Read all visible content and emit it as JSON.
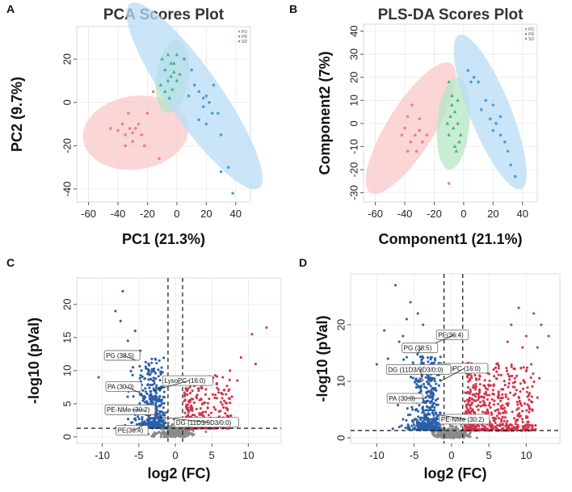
{
  "figure": {
    "panel_labels": [
      "A",
      "B",
      "C",
      "D"
    ]
  },
  "colors": {
    "PD": "#f08080",
    "PR": "#3cb878",
    "SD": "#4a9fd8",
    "PD_fill": "#f9c8c8",
    "PR_fill": "#b5e6c5",
    "SD_fill": "#b8dcf5",
    "volcano_down": "#2a5fa8",
    "volcano_up": "#d2334a",
    "volcano_ns": "#8a8a8a"
  },
  "chart_data": [
    {
      "id": "A",
      "type": "scatter",
      "title": "PCA Scores Plot",
      "xlabel": "PC1 (21.3%)",
      "ylabel": "PC2 (9.7%)",
      "xlim": [
        -68,
        50
      ],
      "ylim": [
        -46,
        35
      ],
      "xticks": [
        -60,
        -40,
        -20,
        0,
        20,
        40
      ],
      "yticks": [
        -40,
        -20,
        0,
        20
      ],
      "legend": [
        "PD",
        "PR",
        "SD"
      ],
      "legend_position": "top-right",
      "ellipses": [
        {
          "group": "PD",
          "cx": -28,
          "cy": -14,
          "rx": 36,
          "ry": 17,
          "angle": 8
        },
        {
          "group": "PR",
          "cx": -3,
          "cy": 12,
          "rx": 11,
          "ry": 17,
          "angle": -8
        },
        {
          "group": "SD",
          "cx": 12,
          "cy": 3,
          "rx": 18,
          "ry": 52,
          "angle": 35
        }
      ],
      "series": [
        {
          "name": "PD",
          "points": [
            [
              -40,
              -13
            ],
            [
              -37,
              -10
            ],
            [
              -35,
              -15
            ],
            [
              -33,
              -5
            ],
            [
              -32,
              -12
            ],
            [
              -30,
              -18
            ],
            [
              -28,
              -12
            ],
            [
              -26,
              -10
            ],
            [
              -24,
              -15
            ],
            [
              -20,
              -5
            ],
            [
              -45,
              -12
            ],
            [
              -22,
              -20
            ],
            [
              -35,
              -20
            ],
            [
              -30,
              -14
            ],
            [
              -12,
              -26
            ],
            [
              -16,
              5
            ]
          ]
        },
        {
          "name": "PR",
          "points": [
            [
              -10,
              20
            ],
            [
              -8,
              15
            ],
            [
              -6,
              22
            ],
            [
              -4,
              12
            ],
            [
              -2,
              18
            ],
            [
              0,
              10
            ],
            [
              -6,
              10
            ],
            [
              -8,
              5
            ],
            [
              -2,
              14
            ],
            [
              2,
              13
            ],
            [
              -4,
              18
            ],
            [
              -11,
              8
            ],
            [
              -5,
              2
            ],
            [
              0,
              22
            ],
            [
              -3,
              6
            ]
          ]
        },
        {
          "name": "SD",
          "points": [
            [
              5,
              20
            ],
            [
              10,
              15
            ],
            [
              12,
              8
            ],
            [
              15,
              5
            ],
            [
              18,
              -2
            ],
            [
              20,
              3
            ],
            [
              22,
              0
            ],
            [
              24,
              -5
            ],
            [
              20,
              -10
            ],
            [
              25,
              8
            ],
            [
              30,
              -15
            ],
            [
              28,
              -5
            ],
            [
              35,
              -30
            ],
            [
              38,
              -42
            ],
            [
              30,
              -32
            ],
            [
              15,
              -8
            ],
            [
              8,
              3
            ],
            [
              18,
              2
            ]
          ]
        }
      ]
    },
    {
      "id": "B",
      "type": "scatter",
      "title": "PLS-DA Scores Plot",
      "xlabel": "Component1 (21.1%)",
      "ylabel": "Component2 (7%)",
      "xlim": [
        -68,
        50
      ],
      "ylim": [
        -34,
        43
      ],
      "xticks": [
        -60,
        -40,
        -20,
        0,
        20,
        40
      ],
      "yticks": [
        -30,
        -20,
        -10,
        0,
        10,
        20,
        30,
        40
      ],
      "legend": [
        "PD",
        "PR",
        "SD"
      ],
      "legend_position": "top-right",
      "ellipses": [
        {
          "group": "PD",
          "cx": -36,
          "cy": -2,
          "rx": 16,
          "ry": 33,
          "angle": -32
        },
        {
          "group": "PR",
          "cx": -7,
          "cy": 0,
          "rx": 11,
          "ry": 20,
          "angle": -5
        },
        {
          "group": "SD",
          "cx": 18,
          "cy": 5,
          "rx": 14,
          "ry": 36,
          "angle": 22
        }
      ],
      "series": [
        {
          "name": "PD",
          "points": [
            [
              -35,
              8
            ],
            [
              -38,
              3
            ],
            [
              -30,
              2
            ],
            [
              -40,
              -2
            ],
            [
              -33,
              -5
            ],
            [
              -36,
              -8
            ],
            [
              -28,
              -8
            ],
            [
              -32,
              -12
            ],
            [
              -38,
              -12
            ],
            [
              -25,
              -5
            ],
            [
              -42,
              -5
            ],
            [
              -30,
              -3
            ],
            [
              -10,
              -26
            ]
          ]
        },
        {
          "name": "PR",
          "points": [
            [
              -10,
              18
            ],
            [
              -8,
              12
            ],
            [
              -4,
              10
            ],
            [
              -6,
              5
            ],
            [
              -9,
              3
            ],
            [
              -4,
              0
            ],
            [
              -7,
              -2
            ],
            [
              -10,
              -5
            ],
            [
              -3,
              -8
            ],
            [
              -6,
              -10
            ],
            [
              -2,
              -5
            ],
            [
              -8,
              8
            ],
            [
              -11,
              0
            ],
            [
              -5,
              -12
            ]
          ]
        },
        {
          "name": "SD",
          "points": [
            [
              3,
              23
            ],
            [
              7,
              20
            ],
            [
              10,
              18
            ],
            [
              15,
              10
            ],
            [
              20,
              8
            ],
            [
              18,
              2
            ],
            [
              22,
              0
            ],
            [
              20,
              -3
            ],
            [
              25,
              -5
            ],
            [
              28,
              -8
            ],
            [
              30,
              -12
            ],
            [
              32,
              -18
            ],
            [
              35,
              -23
            ],
            [
              12,
              6
            ],
            [
              25,
              3
            ],
            [
              5,
              18
            ]
          ]
        }
      ]
    },
    {
      "id": "C",
      "type": "scatter",
      "subtype": "volcano",
      "xlabel": "log2 (FC)",
      "ylabel": "-log10 (pVal)",
      "xlim": [
        -13.5,
        14.5
      ],
      "ylim": [
        -1,
        24
      ],
      "xticks": [
        -10,
        -5,
        0,
        5,
        10
      ],
      "yticks": [
        0,
        5,
        10,
        15,
        20
      ],
      "thresholds": {
        "fc": [
          -1,
          1
        ],
        "pval": 1.3
      },
      "annotations": [
        {
          "label": "PG (38:5)",
          "x": -5.5,
          "y": 11.6,
          "tx": -9.5,
          "ty": 12.3
        },
        {
          "label": "LysoPC (16:0)",
          "x": -3.0,
          "y": 7.0,
          "tx": -1.5,
          "ty": 8.5
        },
        {
          "label": "PA (30:0)",
          "x": -4.5,
          "y": 6.5,
          "tx": -9.3,
          "ty": 7.6
        },
        {
          "label": "PE-NMe (30:2)",
          "x": -4.0,
          "y": 4.0,
          "tx": -9.4,
          "ty": 4.1
        },
        {
          "label": "DG (11D3/9D3/0:0)",
          "x": -2.2,
          "y": 3.0,
          "tx": 0.1,
          "ty": 2.2
        },
        {
          "label": "PE(36:4)",
          "x": -4.3,
          "y": 1.8,
          "tx": -7.9,
          "ty": 1.0
        }
      ]
    },
    {
      "id": "D",
      "type": "scatter",
      "subtype": "volcano",
      "xlabel": "log2 (FC)",
      "ylabel": "-log10 (pVal)",
      "xlim": [
        -13.5,
        14.5
      ],
      "ylim": [
        -1,
        29
      ],
      "xticks": [
        -10,
        -5,
        0,
        5,
        10
      ],
      "yticks": [
        0,
        10,
        20
      ],
      "thresholds": {
        "fc": [
          -1,
          1.5
        ],
        "pval": 1.3
      },
      "annotations": [
        {
          "label": "PE(36:4)",
          "x": -3.5,
          "y": 16.0,
          "tx": -1.8,
          "ty": 18.2
        },
        {
          "label": "PG (38:5)",
          "x": -4.5,
          "y": 15.0,
          "tx": -6.4,
          "ty": 15.9
        },
        {
          "label": "LysoPC (16:0)",
          "x": -1.5,
          "y": 10.0,
          "tx": -1.6,
          "ty": 12.3
        },
        {
          "label": "DG (11D3/9D3/0:0)",
          "x": -3.8,
          "y": 10.0,
          "tx": -8.5,
          "ty": 12.1
        },
        {
          "label": "PA (30:0)",
          "x": -3.5,
          "y": 7.0,
          "tx": -8.4,
          "ty": 7.0
        },
        {
          "label": "PE-NMe (30:2)",
          "x": -1.5,
          "y": 4.0,
          "tx": -1.4,
          "ty": 3.3
        }
      ]
    }
  ]
}
